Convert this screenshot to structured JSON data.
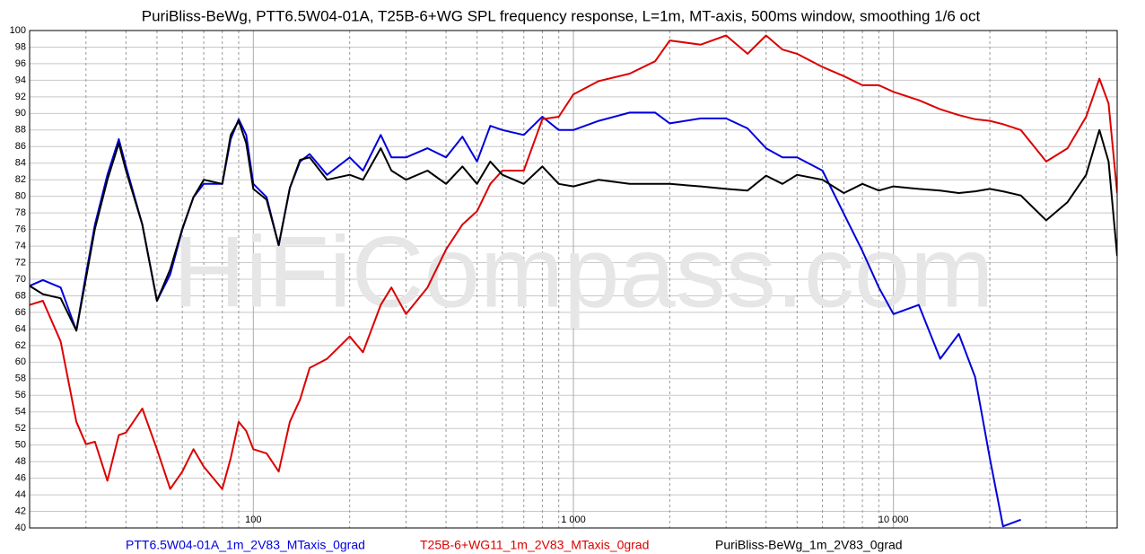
{
  "chart_data": {
    "type": "line",
    "title": "PuriBliss-BeWg,     PTT6.5W04-01A,     T25B-6+WG   SPL frequency response, L=1m, MT-axis, 500ms window, smoothing 1/6 oct",
    "watermark": "HiFiCompass.com",
    "log_x": true,
    "grid": true,
    "legend": "bottom",
    "xlim": [
      20,
      50000
    ],
    "ylim": [
      40,
      100
    ],
    "xticks": [
      100,
      {
        "value": 1000,
        "label": "1 000"
      },
      {
        "value": 10000,
        "label": "10 000"
      }
    ],
    "x_minor_ticks": [
      30,
      40,
      50,
      60,
      70,
      80,
      90,
      200,
      300,
      400,
      500,
      600,
      700,
      800,
      900,
      2000,
      3000,
      4000,
      5000,
      6000,
      7000,
      8000,
      9000,
      20000,
      30000,
      40000
    ],
    "yticks": [
      40,
      42,
      44,
      46,
      48,
      50,
      52,
      54,
      56,
      58,
      60,
      62,
      64,
      66,
      68,
      70,
      72,
      74,
      76,
      78,
      80,
      82,
      84,
      86,
      88,
      90,
      92,
      94,
      96,
      98,
      100
    ],
    "x": [
      20,
      22,
      25,
      28,
      30,
      32,
      35,
      38,
      40,
      45,
      50,
      55,
      60,
      65,
      70,
      80,
      85,
      90,
      95,
      100,
      110,
      120,
      130,
      140,
      150,
      170,
      200,
      220,
      250,
      270,
      300,
      350,
      400,
      450,
      500,
      550,
      600,
      700,
      800,
      900,
      1000,
      1200,
      1500,
      1800,
      2000,
      2500,
      3000,
      3500,
      4000,
      4500,
      5000,
      6000,
      7000,
      8000,
      9000,
      10000,
      12000,
      14000,
      16000,
      18000,
      20000,
      22000,
      25000,
      30000,
      35000,
      40000,
      44000,
      47000,
      50000
    ],
    "series": [
      {
        "name": "PTT6.5W04-01A_1m_2V83_MTaxis_0grad",
        "color": "#0000dd",
        "values": [
          69.2,
          69.9,
          69,
          63.8,
          70.6,
          76.6,
          82.6,
          86.9,
          83.6,
          76.6,
          67.4,
          70.6,
          76,
          79.9,
          81.5,
          81.5,
          86.9,
          89.3,
          87.4,
          81.5,
          79.9,
          74.1,
          81,
          84.2,
          85.1,
          82.6,
          84.7,
          83.1,
          87.4,
          84.7,
          84.7,
          85.8,
          84.7,
          87.2,
          84.2,
          88.5,
          88,
          87.4,
          89.6,
          88,
          88,
          89.1,
          90.1,
          90.1,
          88.8,
          89.4,
          89.4,
          88.2,
          85.8,
          84.7,
          84.7,
          83.1,
          77.9,
          73.4,
          69,
          65.8,
          66.9,
          60.4,
          63.4,
          58.2,
          48.4,
          40.2,
          41,
          null,
          null,
          null,
          null,
          null,
          null
        ]
      },
      {
        "name": "T25B-6+WG11_1m_2V83_MTaxis_0grad",
        "color": "#dd0000",
        "values": [
          66.9,
          67.4,
          62.5,
          52.8,
          50.1,
          50.4,
          45.7,
          51.2,
          51.5,
          54.4,
          49.5,
          44.7,
          46.8,
          49.5,
          47.4,
          44.7,
          48.4,
          52.8,
          51.7,
          49.5,
          49,
          46.8,
          52.8,
          55.5,
          59.3,
          60.4,
          63.1,
          61.2,
          66.9,
          69,
          65.8,
          69,
          73.6,
          76.6,
          78.2,
          81.5,
          83.1,
          83.1,
          89.3,
          89.6,
          92.3,
          93.9,
          94.8,
          96.3,
          98.8,
          98.3,
          99.4,
          97.2,
          99.4,
          97.7,
          97.2,
          95.6,
          94.5,
          93.4,
          93.4,
          92.6,
          91.6,
          90.5,
          89.8,
          89.3,
          89.1,
          88.7,
          88,
          84.2,
          85.8,
          89.6,
          94.2,
          91.2,
          80.4
        ]
      },
      {
        "name": "PuriBliss-BeWg_1m_2V83_0grad",
        "color": "#000000",
        "values": [
          69.2,
          68.2,
          67.7,
          63.8,
          70.1,
          76.1,
          82,
          86.4,
          83.1,
          76.6,
          67.4,
          71.2,
          76.1,
          79.9,
          82,
          81.5,
          87.4,
          89.1,
          86.4,
          80.9,
          79.6,
          74.1,
          81,
          84.4,
          84.7,
          82,
          82.6,
          82,
          85.8,
          83.1,
          82,
          83.1,
          81.5,
          83.6,
          81.5,
          84.2,
          82.6,
          81.5,
          83.6,
          81.5,
          81.2,
          82,
          81.5,
          81.5,
          81.5,
          81.2,
          80.9,
          80.7,
          82.5,
          81.5,
          82.6,
          82,
          80.4,
          81.5,
          80.7,
          81.2,
          80.9,
          80.7,
          80.4,
          80.6,
          80.9,
          80.6,
          80.1,
          77.1,
          79.3,
          82.6,
          88,
          84.2,
          72.8
        ]
      }
    ]
  }
}
